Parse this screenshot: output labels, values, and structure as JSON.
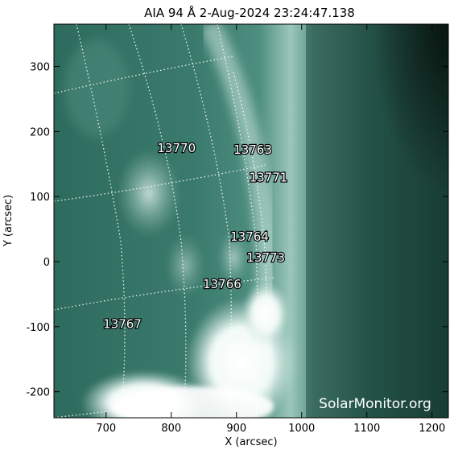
{
  "title": "AIA 94 Å  2-Aug-2024 23:24:47.138",
  "watermark": "SolarMonitor.org",
  "axes": {
    "xlabel": "X (arcsec)",
    "ylabel": "Y (arcsec)",
    "xlim": [
      620,
      1225
    ],
    "ylim": [
      -240,
      365
    ],
    "xticks": [
      {
        "value": 700,
        "label": "700"
      },
      {
        "value": 800,
        "label": "800"
      },
      {
        "value": 900,
        "label": "900"
      },
      {
        "value": 1000,
        "label": "1000"
      },
      {
        "value": 1100,
        "label": "1100"
      },
      {
        "value": 1200,
        "label": "1200"
      }
    ],
    "yticks": [
      {
        "value": 300,
        "label": "300"
      },
      {
        "value": 200,
        "label": "200"
      },
      {
        "value": 100,
        "label": "100"
      },
      {
        "value": 0,
        "label": "0"
      },
      {
        "value": -100,
        "label": "-100"
      },
      {
        "value": -200,
        "label": "-200"
      }
    ]
  },
  "active_regions": [
    {
      "label": "13770",
      "x": 808,
      "y": 168
    },
    {
      "label": "13763",
      "x": 925,
      "y": 166
    },
    {
      "label": "13771",
      "x": 949,
      "y": 123
    },
    {
      "label": "13764",
      "x": 920,
      "y": 32
    },
    {
      "label": "13773",
      "x": 945,
      "y": 0
    },
    {
      "label": "13766",
      "x": 878,
      "y": -41
    },
    {
      "label": "13767",
      "x": 725,
      "y": -102
    }
  ],
  "colors": {
    "background": "#ffffff",
    "image_base": "#2d6b5d",
    "limb_bright": "#cfe6de",
    "flare": "#ffffff",
    "space": "#0a1f19"
  }
}
